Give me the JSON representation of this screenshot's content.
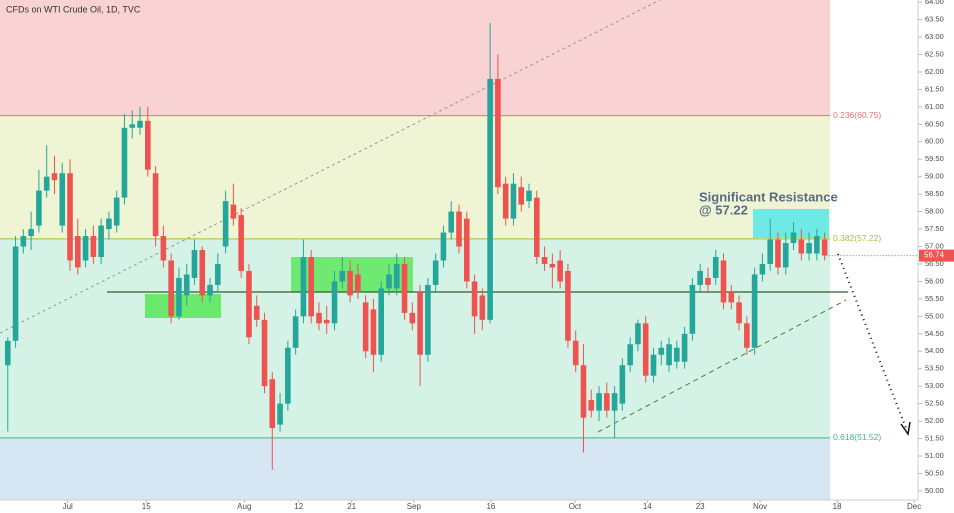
{
  "chart_data": {
    "type": "candlestick",
    "title": "CFDs on WTI Crude Oil, 1D, TVC",
    "annotation": [
      "Significant Resistance",
      "@ 57.22"
    ],
    "up_color": "#26a69a",
    "down_color": "#ef5350",
    "xlim": [
      -1,
      117
    ],
    "ylim": [
      49.74,
      64.06
    ],
    "xticks": [
      {
        "value": 7.7,
        "label": "Jul"
      },
      {
        "value": 17.8,
        "label": "15"
      },
      {
        "value": 30.4,
        "label": "Aug"
      },
      {
        "value": 37.4,
        "label": "12"
      },
      {
        "value": 44.2,
        "label": "21"
      },
      {
        "value": 52.2,
        "label": "Sep"
      },
      {
        "value": 62.1,
        "label": "16"
      },
      {
        "value": 72.9,
        "label": "Oct"
      },
      {
        "value": 82.2,
        "label": "14"
      },
      {
        "value": 89,
        "label": "23"
      },
      {
        "value": 96.7,
        "label": "Nov"
      },
      {
        "value": 106.6,
        "label": "18"
      },
      {
        "value": 116.5,
        "label": "Dec"
      }
    ],
    "yticks": [
      {
        "value": 50,
        "label": "50.00"
      },
      {
        "value": 50.5,
        "label": "50.50"
      },
      {
        "value": 51,
        "label": "51.00"
      },
      {
        "value": 51.5,
        "label": "51.50"
      },
      {
        "value": 52,
        "label": "52.00"
      },
      {
        "value": 52.5,
        "label": "52.50"
      },
      {
        "value": 53,
        "label": "53.00"
      },
      {
        "value": 53.5,
        "label": "53.50"
      },
      {
        "value": 54,
        "label": "54.00"
      },
      {
        "value": 54.5,
        "label": "54.50"
      },
      {
        "value": 55,
        "label": "55.00"
      },
      {
        "value": 55.5,
        "label": "55.50"
      },
      {
        "value": 56,
        "label": "56.00"
      },
      {
        "value": 56.5,
        "label": "56.50"
      },
      {
        "value": 57,
        "label": "57.00"
      },
      {
        "value": 57.5,
        "label": "57.50"
      },
      {
        "value": 58,
        "label": "58.00"
      },
      {
        "value": 58.5,
        "label": "58.50"
      },
      {
        "value": 59,
        "label": "59.00"
      },
      {
        "value": 59.5,
        "label": "59.50"
      },
      {
        "value": 60,
        "label": "60.00"
      },
      {
        "value": 60.5,
        "label": "60.50"
      },
      {
        "value": 61,
        "label": "61.00"
      },
      {
        "value": 61.5,
        "label": "61.50"
      },
      {
        "value": 62,
        "label": "62.00"
      },
      {
        "value": 62.5,
        "label": "62.50"
      },
      {
        "value": 63,
        "label": "63.00"
      },
      {
        "value": 63.5,
        "label": "63.50"
      },
      {
        "value": 64,
        "label": "64.00"
      }
    ],
    "fib_levels": [
      {
        "value": 60.75,
        "label": "0.236(60.75)",
        "color": "#e57373"
      },
      {
        "value": 57.22,
        "label": "0.382(57.22)",
        "color": "#a4bf3c"
      },
      {
        "value": 51.52,
        "label": "0.618(51.52)",
        "color": "#43b581"
      }
    ],
    "band_colors": [
      "#f9d3d3",
      "#eef4d4",
      "#d5f2e6",
      "#d6e6f2"
    ],
    "x": [
      0,
      1,
      2,
      3,
      4,
      5,
      6,
      7,
      8,
      9,
      10,
      11,
      12,
      13,
      14,
      15,
      16,
      17,
      18,
      19,
      20,
      21,
      22,
      23,
      24,
      25,
      26,
      27,
      28,
      29,
      30,
      31,
      32,
      33,
      34,
      35,
      36,
      37,
      38,
      39,
      40,
      41,
      42,
      43,
      44,
      45,
      46,
      47,
      48,
      49,
      50,
      51,
      52,
      53,
      54,
      55,
      56,
      57,
      58,
      59,
      60,
      61,
      62,
      63,
      64,
      65,
      66,
      67,
      68,
      69,
      70,
      71,
      72,
      73,
      74,
      75,
      76,
      77,
      78,
      79,
      80,
      81,
      82,
      83,
      84,
      85,
      86,
      87,
      88,
      89,
      90,
      91,
      92,
      93,
      94,
      95,
      96,
      97,
      98,
      99,
      100,
      101,
      102,
      103,
      104,
      105
    ],
    "ohlc": [
      [
        53.6,
        54.4,
        51.7,
        54.3
      ],
      [
        54.3,
        57.3,
        54.1,
        57.0
      ],
      [
        57.0,
        57.5,
        56.8,
        57.3
      ],
      [
        57.3,
        58.0,
        56.9,
        57.5
      ],
      [
        57.6,
        59.2,
        57.4,
        58.6
      ],
      [
        58.6,
        59.9,
        58.4,
        59.0
      ],
      [
        59.1,
        59.6,
        58.5,
        58.9
      ],
      [
        57.6,
        59.4,
        57.4,
        59.1
      ],
      [
        59.1,
        59.5,
        56.3,
        56.6
      ],
      [
        57.3,
        57.8,
        56.2,
        56.4
      ],
      [
        56.6,
        57.5,
        56.4,
        57.3
      ],
      [
        57.3,
        57.6,
        56.5,
        56.7
      ],
      [
        56.7,
        57.8,
        56.5,
        57.6
      ],
      [
        57.5,
        58.0,
        57.2,
        57.8
      ],
      [
        57.6,
        58.6,
        57.4,
        58.4
      ],
      [
        58.4,
        60.8,
        58.2,
        60.4
      ],
      [
        60.4,
        60.9,
        60.1,
        60.5
      ],
      [
        60.4,
        61.0,
        60.2,
        60.6
      ],
      [
        60.6,
        61.0,
        59.0,
        59.2
      ],
      [
        59.1,
        59.3,
        57.0,
        57.3
      ],
      [
        57.3,
        57.6,
        56.4,
        56.6
      ],
      [
        56.6,
        56.8,
        54.8,
        55.0
      ],
      [
        55.0,
        56.4,
        54.9,
        56.1
      ],
      [
        55.6,
        56.5,
        55.3,
        56.2
      ],
      [
        56.1,
        57.2,
        55.9,
        56.9
      ],
      [
        56.9,
        57.0,
        55.4,
        55.6
      ],
      [
        55.6,
        56.1,
        55.4,
        55.9
      ],
      [
        55.9,
        56.8,
        55.7,
        56.5
      ],
      [
        57.0,
        58.6,
        56.8,
        58.3
      ],
      [
        58.2,
        58.8,
        57.6,
        57.8
      ],
      [
        57.9,
        58.1,
        56.1,
        56.3
      ],
      [
        56.3,
        56.5,
        54.2,
        54.4
      ],
      [
        55.3,
        55.6,
        54.7,
        54.9
      ],
      [
        54.9,
        55.1,
        52.8,
        53.0
      ],
      [
        53.2,
        53.4,
        50.6,
        51.8
      ],
      [
        51.9,
        52.8,
        51.7,
        52.5
      ],
      [
        52.5,
        54.3,
        52.3,
        54.1
      ],
      [
        54.1,
        55.2,
        53.9,
        55.0
      ],
      [
        55.0,
        57.2,
        54.8,
        56.7
      ],
      [
        56.7,
        56.9,
        54.8,
        55.0
      ],
      [
        55.1,
        55.4,
        54.6,
        54.8
      ],
      [
        54.9,
        55.3,
        54.5,
        54.8
      ],
      [
        54.8,
        56.3,
        54.6,
        56.0
      ],
      [
        56.0,
        56.7,
        55.8,
        56.3
      ],
      [
        56.3,
        56.6,
        55.4,
        55.6
      ],
      [
        56.2,
        56.5,
        55.5,
        55.7
      ],
      [
        55.4,
        55.6,
        53.8,
        54.0
      ],
      [
        55.2,
        55.5,
        53.4,
        53.9
      ],
      [
        53.9,
        56.0,
        53.7,
        55.8
      ],
      [
        55.8,
        56.5,
        55.6,
        56.2
      ],
      [
        55.8,
        56.8,
        55.6,
        56.5
      ],
      [
        56.5,
        56.7,
        54.9,
        55.1
      ],
      [
        55.1,
        55.4,
        54.6,
        54.8
      ],
      [
        55.7,
        55.9,
        53.0,
        53.9
      ],
      [
        53.9,
        56.1,
        53.7,
        55.9
      ],
      [
        55.9,
        56.8,
        55.7,
        56.6
      ],
      [
        56.6,
        57.6,
        56.4,
        57.4
      ],
      [
        57.4,
        58.3,
        57.2,
        58.0
      ],
      [
        58.0,
        58.2,
        56.8,
        57.0
      ],
      [
        57.8,
        58.0,
        55.8,
        56.0
      ],
      [
        56.0,
        56.2,
        54.5,
        55.0
      ],
      [
        55.6,
        55.8,
        54.6,
        54.9
      ],
      [
        54.9,
        63.4,
        54.8,
        61.8
      ],
      [
        61.8,
        62.5,
        58.5,
        58.7
      ],
      [
        58.8,
        59.0,
        57.6,
        57.8
      ],
      [
        57.8,
        59.1,
        57.6,
        58.8
      ],
      [
        58.7,
        59.0,
        58.0,
        58.2
      ],
      [
        58.3,
        58.8,
        58.1,
        58.6
      ],
      [
        58.4,
        58.6,
        56.5,
        56.7
      ],
      [
        56.7,
        57.0,
        56.3,
        56.5
      ],
      [
        56.5,
        56.8,
        55.8,
        56.4
      ],
      [
        56.6,
        56.9,
        55.8,
        56.0
      ],
      [
        56.3,
        56.5,
        54.1,
        54.3
      ],
      [
        54.3,
        54.6,
        53.4,
        53.6
      ],
      [
        53.6,
        54.2,
        51.1,
        52.1
      ],
      [
        52.6,
        52.9,
        52.1,
        52.3
      ],
      [
        52.3,
        53.0,
        52.0,
        52.8
      ],
      [
        52.8,
        53.1,
        52.1,
        52.3
      ],
      [
        52.3,
        53.0,
        51.5,
        52.8
      ],
      [
        52.5,
        53.8,
        52.3,
        53.6
      ],
      [
        53.6,
        54.4,
        53.4,
        54.2
      ],
      [
        54.2,
        54.9,
        54.0,
        54.8
      ],
      [
        54.8,
        55.0,
        53.1,
        53.3
      ],
      [
        53.3,
        54.1,
        53.1,
        53.9
      ],
      [
        53.9,
        54.3,
        53.6,
        54.1
      ],
      [
        53.6,
        54.4,
        53.4,
        54.2
      ],
      [
        53.7,
        54.3,
        53.5,
        54.1
      ],
      [
        53.7,
        54.7,
        53.5,
        54.5
      ],
      [
        54.5,
        56.1,
        54.3,
        55.9
      ],
      [
        55.9,
        56.5,
        55.7,
        56.3
      ],
      [
        56.1,
        56.4,
        55.7,
        55.9
      ],
      [
        56.1,
        56.9,
        55.9,
        56.7
      ],
      [
        56.6,
        56.8,
        55.2,
        55.4
      ],
      [
        55.7,
        55.9,
        55.2,
        55.4
      ],
      [
        55.4,
        55.6,
        54.6,
        54.8
      ],
      [
        54.8,
        55.0,
        53.9,
        54.1
      ],
      [
        54.1,
        56.4,
        53.9,
        56.2
      ],
      [
        56.2,
        56.8,
        56.0,
        56.5
      ],
      [
        56.5,
        57.8,
        56.3,
        57.2
      ],
      [
        57.2,
        57.4,
        56.2,
        56.4
      ],
      [
        56.4,
        57.4,
        56.2,
        57.1
      ],
      [
        57.1,
        57.7,
        56.9,
        57.4
      ],
      [
        57.2,
        57.5,
        56.6,
        56.8
      ],
      [
        56.8,
        57.4,
        56.6,
        57.1
      ],
      [
        56.8,
        57.5,
        56.6,
        57.3
      ],
      [
        57.2,
        57.4,
        56.6,
        56.74
      ]
    ]
  }
}
